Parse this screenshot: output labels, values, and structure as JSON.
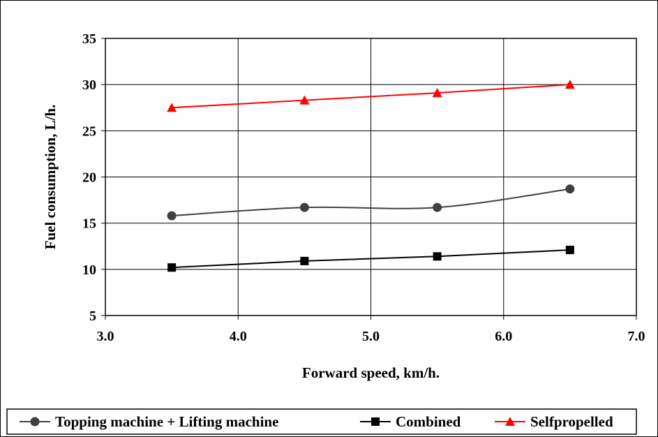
{
  "chart_data": {
    "type": "line",
    "xlabel": "Forward speed, km/h.",
    "ylabel": "Fuel consumption, L/h.",
    "xlim": [
      3.0,
      7.0
    ],
    "ylim": [
      5,
      35
    ],
    "x_ticks": [
      "3.0",
      "4.0",
      "5.0",
      "6.0",
      "7.0"
    ],
    "y_ticks": [
      "5",
      "10",
      "15",
      "20",
      "25",
      "30",
      "35"
    ],
    "grid": true,
    "legend_position": "bottom",
    "x": [
      3.5,
      4.5,
      5.5,
      6.5
    ],
    "series": [
      {
        "name": "Topping machine + Lifting machine",
        "values": [
          15.8,
          16.7,
          16.7,
          18.7
        ],
        "color": "#404040",
        "marker": "circle"
      },
      {
        "name": "Combined",
        "values": [
          10.2,
          10.9,
          11.4,
          12.1
        ],
        "color": "#000000",
        "marker": "square"
      },
      {
        "name": "Selfpropelled",
        "values": [
          27.5,
          28.3,
          29.1,
          30.0
        ],
        "color": "#ff0000",
        "marker": "triangle"
      }
    ]
  }
}
